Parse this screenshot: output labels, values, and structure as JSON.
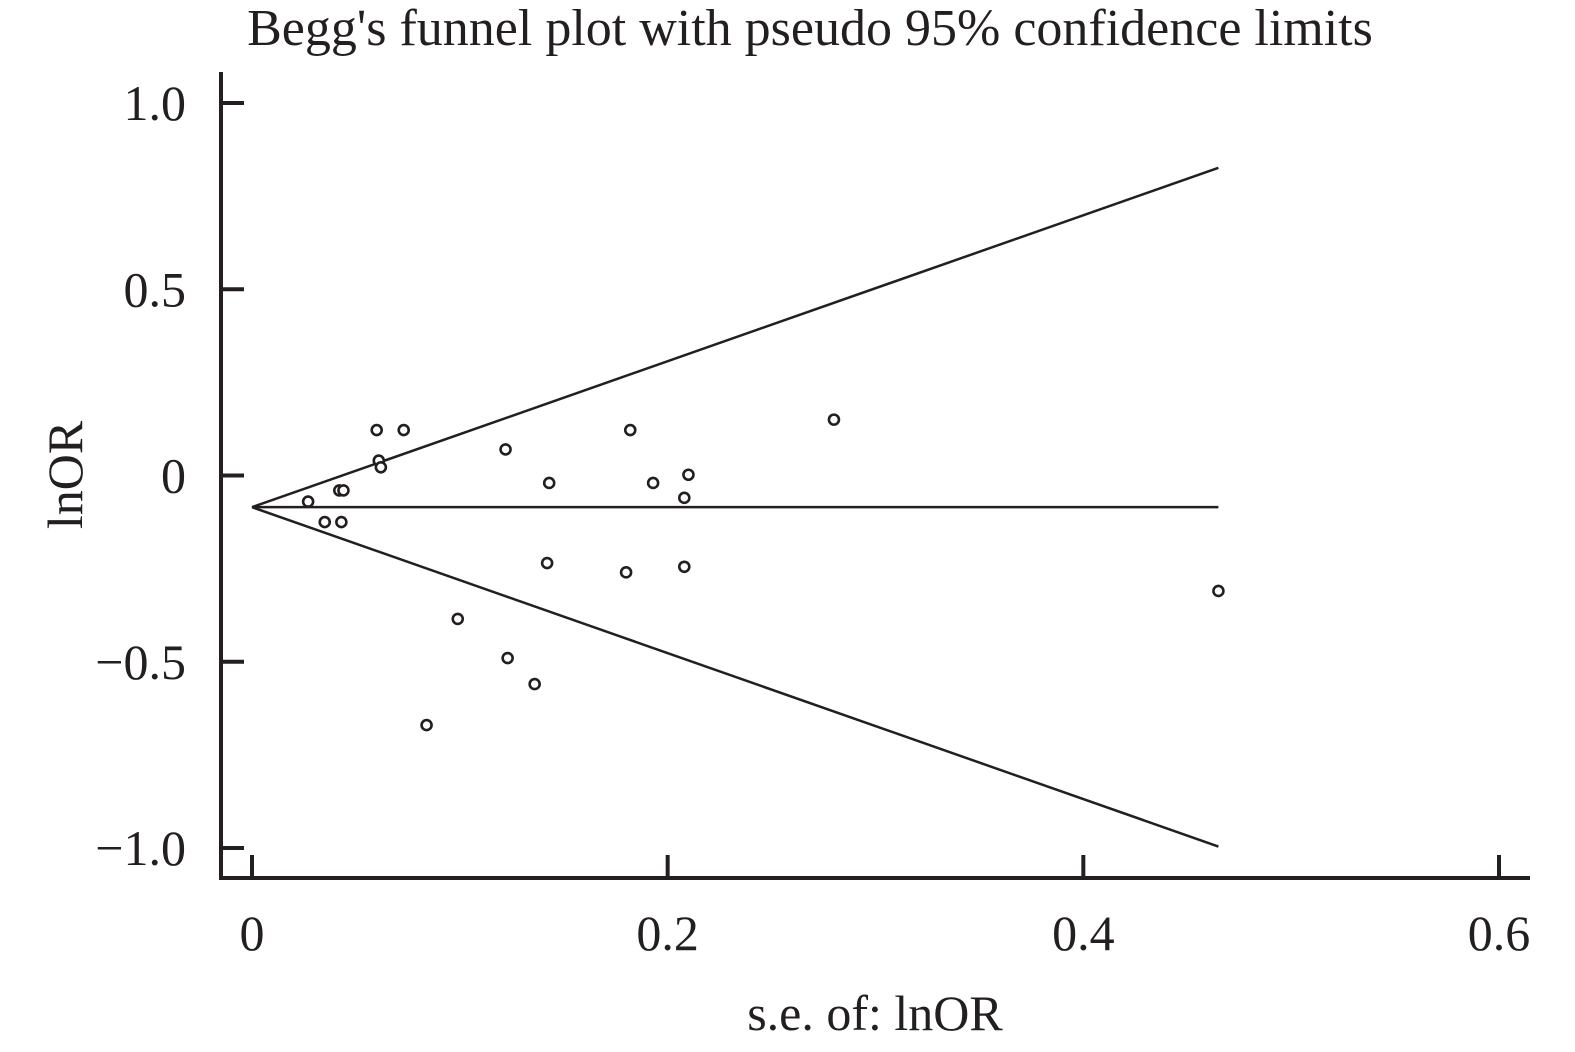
{
  "chart_data": {
    "type": "scatter",
    "title": "Begg's funnel plot with pseudo 95% confidence limits",
    "xlabel": "s.e. of: lnOR",
    "ylabel": "lnOR",
    "xlim": [
      0,
      0.6
    ],
    "ylim": [
      -1.0,
      1.0
    ],
    "x_ticks": [
      0,
      0.2,
      0.4,
      0.6
    ],
    "x_tick_labels": [
      "0",
      "0.2",
      "0.4",
      "0.6"
    ],
    "y_ticks": [
      1.0,
      0.5,
      0,
      -0.5,
      -1.0
    ],
    "y_tick_labels": [
      "1.0",
      "0.5",
      "0",
      "−0.5",
      "−1.0"
    ],
    "grid": false,
    "pooled_estimate": -0.085,
    "max_se": 0.465,
    "confidence_limits": {
      "upper": [
        [
          0,
          -0.085
        ],
        [
          0.465,
          0.826
        ]
      ],
      "lower": [
        [
          0,
          -0.085
        ],
        [
          0.465,
          -0.996
        ]
      ]
    },
    "points": [
      {
        "x": 0.027,
        "y": -0.07
      },
      {
        "x": 0.035,
        "y": -0.125
      },
      {
        "x": 0.042,
        "y": -0.04
      },
      {
        "x": 0.044,
        "y": -0.04
      },
      {
        "x": 0.043,
        "y": -0.125
      },
      {
        "x": 0.06,
        "y": 0.122
      },
      {
        "x": 0.061,
        "y": 0.04
      },
      {
        "x": 0.062,
        "y": 0.022
      },
      {
        "x": 0.073,
        "y": 0.122
      },
      {
        "x": 0.084,
        "y": -0.67
      },
      {
        "x": 0.099,
        "y": -0.385
      },
      {
        "x": 0.122,
        "y": 0.07
      },
      {
        "x": 0.123,
        "y": -0.49
      },
      {
        "x": 0.136,
        "y": -0.56
      },
      {
        "x": 0.142,
        "y": -0.235
      },
      {
        "x": 0.143,
        "y": -0.02
      },
      {
        "x": 0.18,
        "y": -0.26
      },
      {
        "x": 0.182,
        "y": 0.122
      },
      {
        "x": 0.193,
        "y": -0.02
      },
      {
        "x": 0.208,
        "y": -0.245
      },
      {
        "x": 0.208,
        "y": -0.06
      },
      {
        "x": 0.21,
        "y": 0.002
      },
      {
        "x": 0.28,
        "y": 0.15
      },
      {
        "x": 0.465,
        "y": -0.31
      }
    ]
  }
}
